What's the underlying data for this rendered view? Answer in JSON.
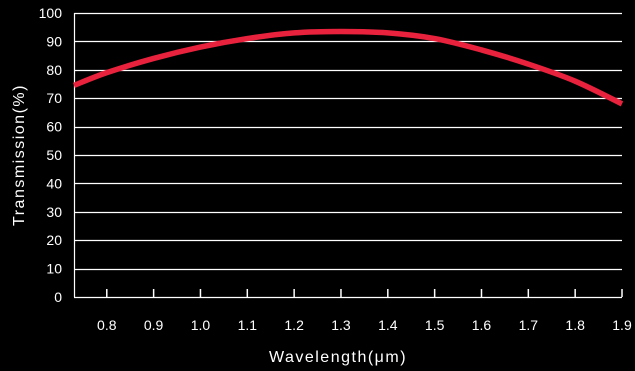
{
  "chart_data": {
    "type": "line",
    "xlabel": "Wavelength(μm)",
    "ylabel": "Transmission(%)",
    "xlim": [
      0.73,
      1.9
    ],
    "ylim": [
      0,
      100
    ],
    "x_ticks": [
      0.8,
      0.9,
      1.0,
      1.1,
      1.2,
      1.3,
      1.4,
      1.5,
      1.6,
      1.7,
      1.8,
      1.9
    ],
    "x_tick_labels": [
      "0.8",
      "0.9",
      "1.0",
      "1.1",
      "1.2",
      "1.3",
      "1.4",
      "1.5",
      "1.6",
      "1.7",
      "1.8",
      "1.9"
    ],
    "y_ticks": [
      0,
      10,
      20,
      30,
      40,
      50,
      60,
      70,
      80,
      90,
      100
    ],
    "y_tick_labels": [
      "0",
      "10",
      "20",
      "30",
      "40",
      "50",
      "60",
      "70",
      "80",
      "90",
      "100"
    ],
    "grid": "horizontal",
    "series": [
      {
        "color": "#e8223c",
        "x": [
          0.73,
          0.8,
          0.9,
          1.0,
          1.1,
          1.2,
          1.3,
          1.4,
          1.5,
          1.6,
          1.7,
          1.8,
          1.9
        ],
        "y": [
          74.5,
          79,
          84,
          88,
          91,
          93,
          93.5,
          93,
          91,
          87,
          82,
          76,
          68
        ]
      }
    ]
  }
}
